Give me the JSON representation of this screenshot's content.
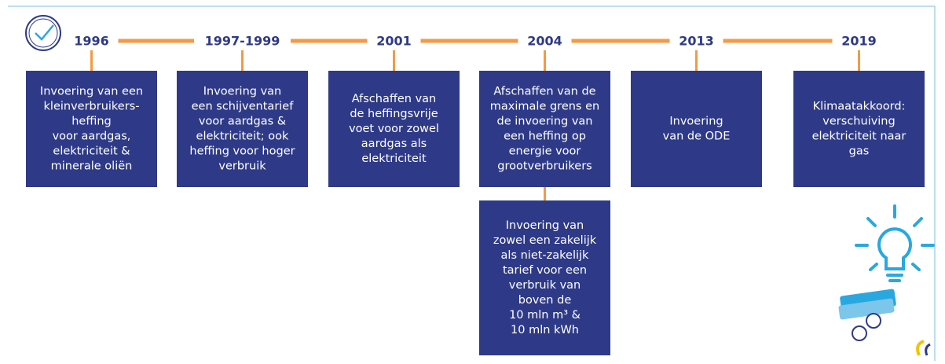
{
  "events": [
    {
      "year": "1996",
      "lines": [
        "Invoering van een",
        "kleinverbruikers-",
        "heffing",
        "voor aardgas,",
        "elektriciteit &",
        "minerale oliën"
      ]
    },
    {
      "year": "1997-1999",
      "lines": [
        "Invoering van",
        "een schijventarief",
        "voor aardgas &",
        "elektriciteit; ook",
        "heffing voor hoger",
        "verbruik"
      ]
    },
    {
      "year": "2001",
      "lines": [
        "Afschaffen van",
        "de heffingsvrije",
        "voet voor zowel",
        "aardgas als",
        "elektriciteit"
      ]
    },
    {
      "year": "2004",
      "lines": [
        "Afschaffen van de",
        "maximale grens en",
        "de invoering van",
        "een heffing op",
        "energie voor",
        "grootverbruikers"
      ]
    },
    {
      "year": "2013",
      "lines": [
        "Invoering",
        "van de ODE"
      ]
    },
    {
      "year": "2019",
      "lines": [
        "Klimaatakkoord:",
        "verschuiving",
        "elektriciteit naar",
        "gas"
      ]
    }
  ],
  "extra": {
    "lines": [
      "Invoering van",
      "zowel een zakelijk",
      "als niet-zakelijk",
      "tarief voor een",
      "verbruik van",
      "boven de",
      "10 mln m³ &",
      "10 mln kWh"
    ]
  }
}
